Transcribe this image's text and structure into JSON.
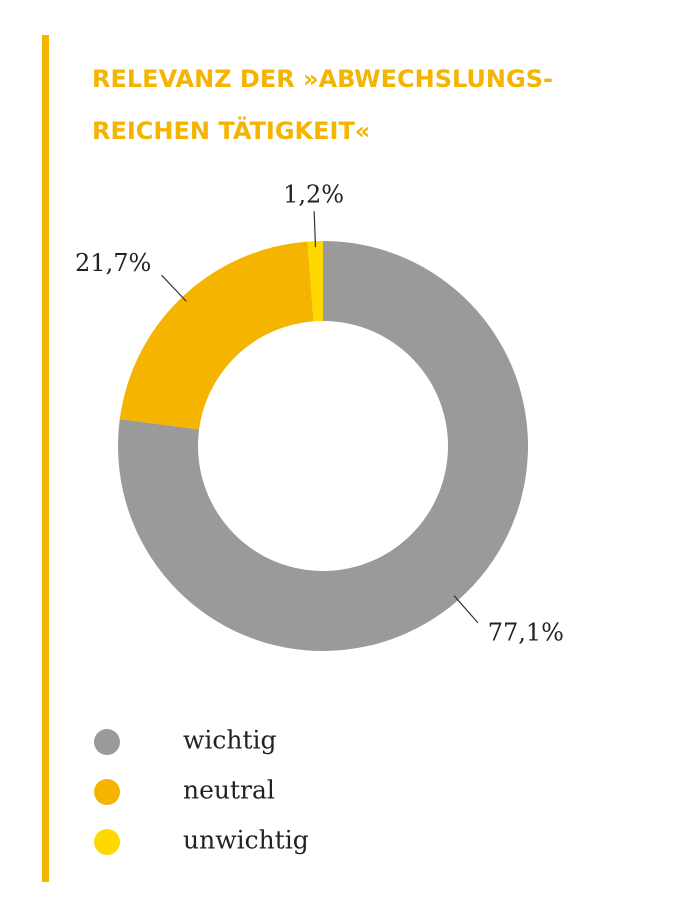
{
  "chart_data": {
    "type": "donut",
    "title": [
      "RELEVANZ DER »ABWECHSLUNGS-",
      "REICHEN TÄTIGKEIT«"
    ],
    "categories": [
      "wichtig",
      "neutral",
      "unwichtig"
    ],
    "values": [
      77.1,
      21.7,
      1.2
    ],
    "value_labels": [
      "77,1%",
      "21,7%",
      "1,2%"
    ],
    "colors": [
      "#9a9a98",
      "#f5b400",
      "#ffd800"
    ]
  }
}
